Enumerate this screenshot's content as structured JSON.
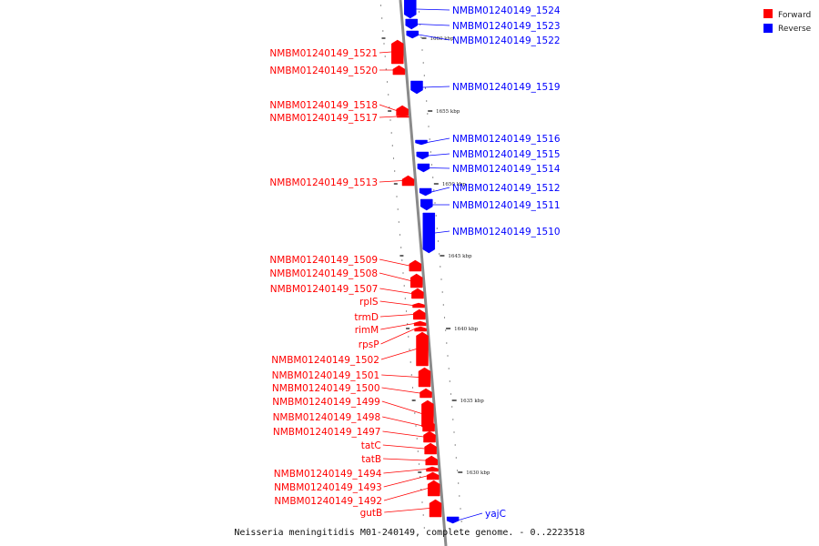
{
  "caption": "Neisseria meningitidis M01-240149, complete genome. - 0..2223518",
  "legend": [
    {
      "label": "Forward",
      "color": "#ff0000"
    },
    {
      "label": "Reverse",
      "color": "#0000ff"
    }
  ],
  "colors": {
    "forward": "#ff0000",
    "reverse": "#0000ff",
    "backbone": "#8a8a8a"
  },
  "ticks": [
    {
      "label": "1660 kbp"
    },
    {
      "label": "1655 kbp"
    },
    {
      "label": "1650 kbp"
    },
    {
      "label": "1645 kbp"
    },
    {
      "label": "1640 kbp"
    },
    {
      "label": "1635 kbp"
    },
    {
      "label": "1630 kbp"
    }
  ],
  "genes": [
    {
      "name": "NMBM01240149_1524",
      "strand": "reverse"
    },
    {
      "name": "NMBM01240149_1523",
      "strand": "reverse"
    },
    {
      "name": "NMBM01240149_1522",
      "strand": "reverse"
    },
    {
      "name": "NMBM01240149_1521",
      "strand": "forward"
    },
    {
      "name": "NMBM01240149_1520",
      "strand": "forward"
    },
    {
      "name": "NMBM01240149_1519",
      "strand": "reverse"
    },
    {
      "name": "NMBM01240149_1518",
      "strand": "forward"
    },
    {
      "name": "NMBM01240149_1517",
      "strand": "forward"
    },
    {
      "name": "NMBM01240149_1516",
      "strand": "reverse"
    },
    {
      "name": "NMBM01240149_1515",
      "strand": "reverse"
    },
    {
      "name": "NMBM01240149_1514",
      "strand": "reverse"
    },
    {
      "name": "NMBM01240149_1513",
      "strand": "forward"
    },
    {
      "name": "NMBM01240149_1512",
      "strand": "reverse"
    },
    {
      "name": "NMBM01240149_1511",
      "strand": "reverse"
    },
    {
      "name": "NMBM01240149_1510",
      "strand": "reverse"
    },
    {
      "name": "NMBM01240149_1509",
      "strand": "forward"
    },
    {
      "name": "NMBM01240149_1508",
      "strand": "forward"
    },
    {
      "name": "NMBM01240149_1507",
      "strand": "forward"
    },
    {
      "name": "rplS",
      "strand": "forward"
    },
    {
      "name": "trmD",
      "strand": "forward"
    },
    {
      "name": "rimM",
      "strand": "forward"
    },
    {
      "name": "rpsP",
      "strand": "forward"
    },
    {
      "name": "NMBM01240149_1502",
      "strand": "forward"
    },
    {
      "name": "NMBM01240149_1501",
      "strand": "forward"
    },
    {
      "name": "NMBM01240149_1500",
      "strand": "forward"
    },
    {
      "name": "NMBM01240149_1499",
      "strand": "forward"
    },
    {
      "name": "NMBM01240149_1498",
      "strand": "forward"
    },
    {
      "name": "NMBM01240149_1497",
      "strand": "forward"
    },
    {
      "name": "tatC",
      "strand": "forward"
    },
    {
      "name": "tatB",
      "strand": "forward"
    },
    {
      "name": "NMBM01240149_1494",
      "strand": "forward"
    },
    {
      "name": "NMBM01240149_1493",
      "strand": "forward"
    },
    {
      "name": "NMBM01240149_1492",
      "strand": "forward"
    },
    {
      "name": "gutB",
      "strand": "forward"
    },
    {
      "name": "yajC",
      "strand": "reverse"
    }
  ]
}
